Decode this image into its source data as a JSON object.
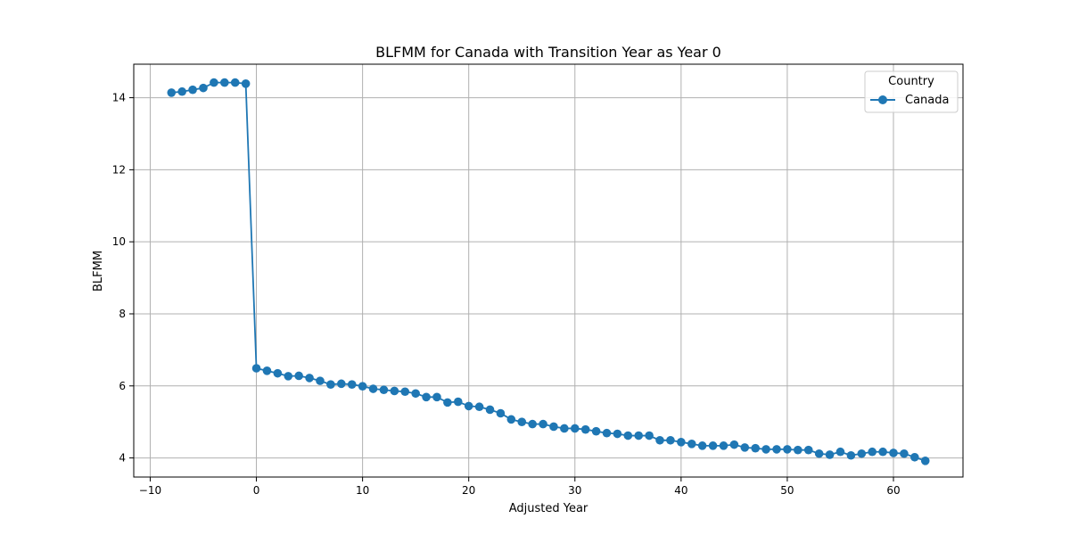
{
  "chart_data": {
    "type": "line",
    "title": "BLFMM for Canada with Transition Year as Year 0",
    "xlabel": "Adjusted Year",
    "ylabel": "BLFMM",
    "xlim": [
      -11.55,
      66.55
    ],
    "ylim": [
      3.47,
      14.93
    ],
    "x_ticks": [
      -10,
      0,
      10,
      20,
      30,
      40,
      50,
      60
    ],
    "y_ticks": [
      4,
      6,
      8,
      10,
      12,
      14
    ],
    "x_tick_labels": [
      "−10",
      "0",
      "10",
      "20",
      "30",
      "40",
      "50",
      "60"
    ],
    "y_tick_labels": [
      "4",
      "6",
      "8",
      "10",
      "12",
      "14"
    ],
    "grid": true,
    "legend": {
      "title": "Country",
      "placement": "top-right",
      "entries": [
        "Canada"
      ]
    },
    "marker": "circle",
    "series": [
      {
        "name": "Canada",
        "color": "#1f77b4",
        "x": [
          -8,
          -7,
          -6,
          -5,
          -4,
          -3,
          -2,
          -1,
          0,
          1,
          2,
          3,
          4,
          5,
          6,
          7,
          8,
          9,
          10,
          11,
          12,
          13,
          14,
          15,
          16,
          17,
          18,
          19,
          20,
          21,
          22,
          23,
          24,
          25,
          26,
          27,
          28,
          29,
          30,
          31,
          32,
          33,
          34,
          35,
          36,
          37,
          38,
          39,
          40,
          41,
          42,
          43,
          44,
          45,
          46,
          47,
          48,
          49,
          50,
          51,
          52,
          53,
          54,
          55,
          56,
          57,
          58,
          59,
          60,
          61,
          62,
          63
        ],
        "y": [
          14.14,
          14.17,
          14.22,
          14.27,
          14.42,
          14.42,
          14.42,
          14.39,
          6.49,
          6.42,
          6.35,
          6.27,
          6.28,
          6.22,
          6.14,
          6.04,
          6.06,
          6.04,
          5.99,
          5.92,
          5.89,
          5.86,
          5.84,
          5.79,
          5.69,
          5.69,
          5.54,
          5.56,
          5.44,
          5.42,
          5.34,
          5.24,
          5.07,
          5.0,
          4.94,
          4.94,
          4.87,
          4.82,
          4.82,
          4.79,
          4.74,
          4.69,
          4.67,
          4.62,
          4.62,
          4.62,
          4.49,
          4.49,
          4.44,
          4.39,
          4.34,
          4.34,
          4.34,
          4.37,
          4.29,
          4.27,
          4.24,
          4.24,
          4.24,
          4.22,
          4.22,
          4.12,
          4.09,
          4.17,
          4.07,
          4.12,
          4.17,
          4.17,
          4.14,
          4.12,
          4.02,
          3.92
        ]
      }
    ]
  }
}
